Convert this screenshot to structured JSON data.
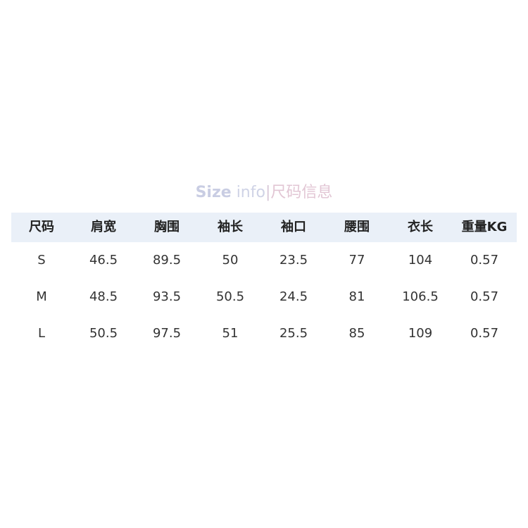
{
  "title": {
    "en": "Size",
    "en2": " info",
    "sep": "|",
    "cn": "尺码信息"
  },
  "headers": [
    "尺码",
    "肩宽",
    "胸围",
    "袖长",
    "袖口",
    "腰围",
    "衣长",
    "重量KG"
  ],
  "rows": [
    [
      "S",
      "46.5",
      "89.5",
      "50",
      "23.5",
      "77",
      "104",
      "0.57"
    ],
    [
      "M",
      "48.5",
      "93.5",
      "50.5",
      "24.5",
      "81",
      "106.5",
      "0.57"
    ],
    [
      "L",
      "50.5",
      "97.5",
      "51",
      "25.5",
      "85",
      "109",
      "0.57"
    ]
  ]
}
